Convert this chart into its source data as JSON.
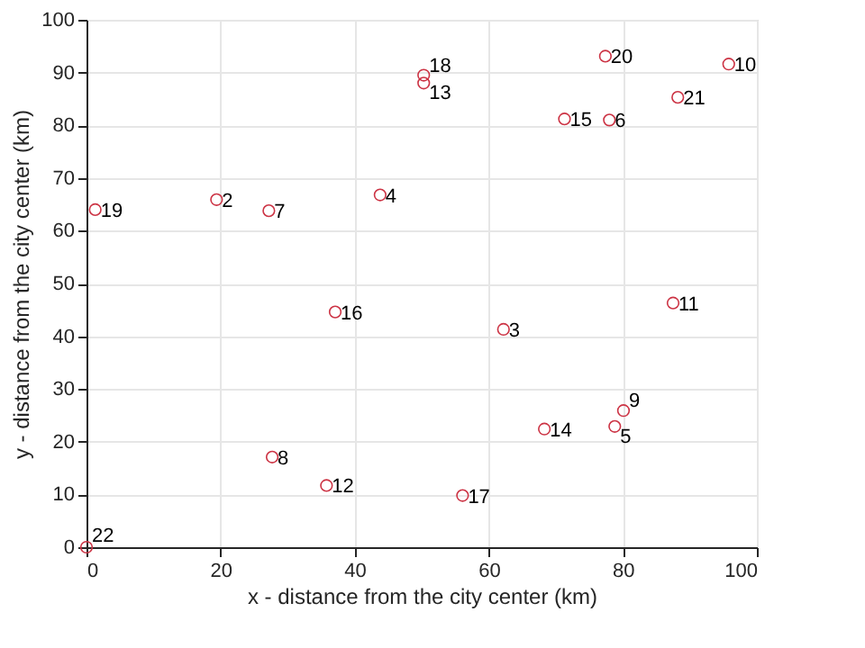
{
  "chart_data": {
    "type": "scatter",
    "xlabel": "x - distance from the city center (km)",
    "ylabel": "y - distance from the city center (km)",
    "x": [
      19.4,
      62.2,
      43.8,
      78.8,
      78.0,
      27.2,
      27.7,
      80.1,
      95.8,
      87.5,
      35.8,
      50.3,
      68.3,
      71.3,
      37.1,
      56.1,
      50.3,
      1.3,
      77.4,
      88.2,
      0
    ],
    "series": [
      {
        "color": "#cc3344",
        "values": [
          65.9,
          41.3,
          66.8,
          22.9,
          81.0,
          63.8,
          17.1,
          25.9,
          91.6,
          46.3,
          11.7,
          88.0,
          22.4,
          81.2,
          44.6,
          9.8,
          89.5,
          64.0,
          93.1,
          85.3,
          0
        ]
      }
    ],
    "annotations": [
      {
        "text": "2",
        "x": 19.4,
        "y": 65.9
      },
      {
        "text": "3",
        "x": 62.2,
        "y": 41.3
      },
      {
        "text": "4",
        "x": 43.8,
        "y": 66.8
      },
      {
        "text": "5",
        "x": 78.8,
        "y": 22.9
      },
      {
        "text": "6",
        "x": 78.0,
        "y": 81.0
      },
      {
        "text": "7",
        "x": 27.2,
        "y": 63.8
      },
      {
        "text": "8",
        "x": 27.7,
        "y": 17.1
      },
      {
        "text": "9",
        "x": 80.1,
        "y": 25.9
      },
      {
        "text": "10",
        "x": 95.8,
        "y": 91.6
      },
      {
        "text": "11",
        "x": 87.5,
        "y": 46.3
      },
      {
        "text": "12",
        "x": 35.8,
        "y": 11.7
      },
      {
        "text": "13",
        "x": 50.3,
        "y": 88.0
      },
      {
        "text": "14",
        "x": 68.3,
        "y": 22.4
      },
      {
        "text": "15",
        "x": 71.3,
        "y": 81.2
      },
      {
        "text": "16",
        "x": 37.1,
        "y": 44.6
      },
      {
        "text": "17",
        "x": 56.1,
        "y": 9.8
      },
      {
        "text": "18",
        "x": 50.3,
        "y": 89.5
      },
      {
        "text": "19",
        "x": 1.3,
        "y": 64.0
      },
      {
        "text": "20",
        "x": 77.4,
        "y": 93.1
      },
      {
        "text": "21",
        "x": 88.2,
        "y": 85.3
      },
      {
        "text": "22",
        "x": 0,
        "y": 0
      }
    ],
    "xlim": [
      0,
      100
    ],
    "ylim": [
      0,
      100
    ],
    "xticks": [
      0,
      20,
      40,
      60,
      80,
      100
    ],
    "yticks": [
      0,
      10,
      20,
      30,
      40,
      50,
      60,
      70,
      80,
      90,
      100
    ],
    "grid": true,
    "marker": "circle"
  }
}
